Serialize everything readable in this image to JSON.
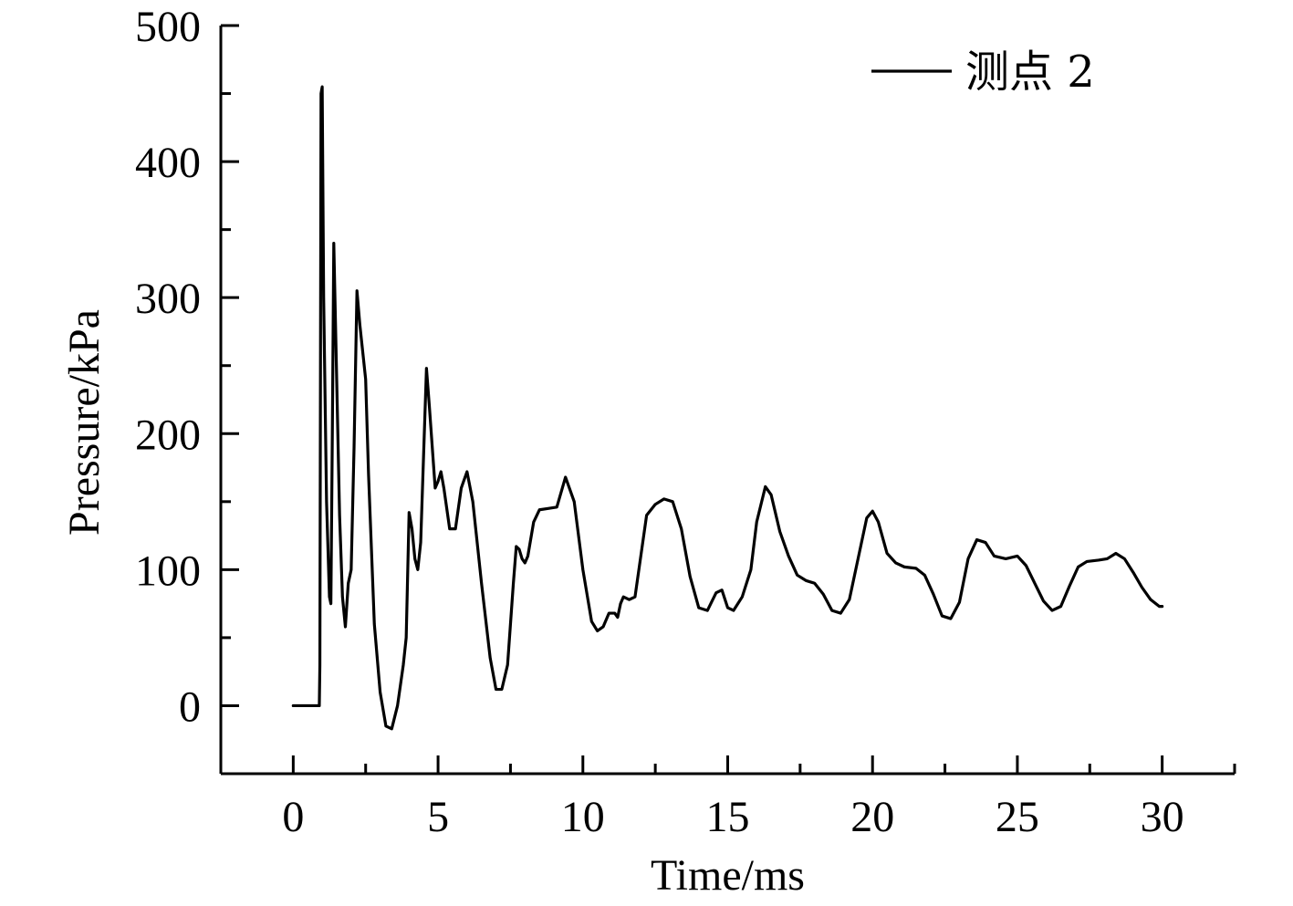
{
  "chart_data": {
    "type": "line",
    "title": "",
    "xlabel": "Time/ms",
    "ylabel": "Pressure/kPa",
    "xlim": [
      -2.5,
      32.5
    ],
    "ylim": [
      -50,
      500
    ],
    "xticks": [
      0,
      5,
      10,
      15,
      20,
      25,
      30
    ],
    "yticks": [
      0,
      100,
      200,
      300,
      400,
      500
    ],
    "x_minor_step": 2.5,
    "y_minor_step": 50,
    "grid": false,
    "legend_position": "top-right",
    "line_color": "#000000",
    "series": [
      {
        "name": "测点 2",
        "points": [
          [
            0.0,
            0
          ],
          [
            0.9,
            0
          ],
          [
            0.92,
            30
          ],
          [
            0.96,
            450
          ],
          [
            1.0,
            455
          ],
          [
            1.05,
            300
          ],
          [
            1.15,
            150
          ],
          [
            1.25,
            80
          ],
          [
            1.3,
            75
          ],
          [
            1.35,
            200
          ],
          [
            1.4,
            340
          ],
          [
            1.5,
            240
          ],
          [
            1.6,
            140
          ],
          [
            1.7,
            80
          ],
          [
            1.8,
            58
          ],
          [
            1.9,
            90
          ],
          [
            2.0,
            100
          ],
          [
            2.1,
            190
          ],
          [
            2.2,
            305
          ],
          [
            2.3,
            280
          ],
          [
            2.5,
            240
          ],
          [
            2.6,
            170
          ],
          [
            2.8,
            60
          ],
          [
            3.0,
            10
          ],
          [
            3.2,
            -15
          ],
          [
            3.4,
            -17
          ],
          [
            3.6,
            0
          ],
          [
            3.8,
            30
          ],
          [
            3.9,
            50
          ],
          [
            4.0,
            142
          ],
          [
            4.1,
            130
          ],
          [
            4.2,
            108
          ],
          [
            4.3,
            100
          ],
          [
            4.4,
            120
          ],
          [
            4.6,
            248
          ],
          [
            4.7,
            220
          ],
          [
            4.9,
            160
          ],
          [
            5.0,
            165
          ],
          [
            5.1,
            172
          ],
          [
            5.2,
            160
          ],
          [
            5.4,
            130
          ],
          [
            5.6,
            130
          ],
          [
            5.8,
            160
          ],
          [
            6.0,
            172
          ],
          [
            6.2,
            150
          ],
          [
            6.5,
            90
          ],
          [
            6.8,
            35
          ],
          [
            7.0,
            12
          ],
          [
            7.2,
            12
          ],
          [
            7.4,
            30
          ],
          [
            7.6,
            90
          ],
          [
            7.7,
            117
          ],
          [
            7.8,
            115
          ],
          [
            7.9,
            108
          ],
          [
            8.0,
            105
          ],
          [
            8.1,
            110
          ],
          [
            8.3,
            135
          ],
          [
            8.5,
            144
          ],
          [
            8.8,
            145
          ],
          [
            9.1,
            146
          ],
          [
            9.4,
            168
          ],
          [
            9.7,
            150
          ],
          [
            10.0,
            100
          ],
          [
            10.3,
            62
          ],
          [
            10.5,
            55
          ],
          [
            10.7,
            58
          ],
          [
            10.9,
            68
          ],
          [
            11.1,
            68
          ],
          [
            11.2,
            65
          ],
          [
            11.3,
            75
          ],
          [
            11.4,
            80
          ],
          [
            11.6,
            78
          ],
          [
            11.8,
            80
          ],
          [
            12.0,
            110
          ],
          [
            12.2,
            140
          ],
          [
            12.5,
            148
          ],
          [
            12.8,
            152
          ],
          [
            13.1,
            150
          ],
          [
            13.4,
            130
          ],
          [
            13.7,
            95
          ],
          [
            14.0,
            72
          ],
          [
            14.3,
            70
          ],
          [
            14.6,
            83
          ],
          [
            14.8,
            85
          ],
          [
            15.0,
            72
          ],
          [
            15.2,
            70
          ],
          [
            15.5,
            80
          ],
          [
            15.8,
            100
          ],
          [
            16.0,
            135
          ],
          [
            16.3,
            161
          ],
          [
            16.5,
            155
          ],
          [
            16.8,
            128
          ],
          [
            17.1,
            110
          ],
          [
            17.4,
            96
          ],
          [
            17.7,
            92
          ],
          [
            18.0,
            90
          ],
          [
            18.3,
            82
          ],
          [
            18.6,
            70
          ],
          [
            18.9,
            68
          ],
          [
            19.2,
            78
          ],
          [
            19.5,
            108
          ],
          [
            19.8,
            138
          ],
          [
            20.0,
            143
          ],
          [
            20.2,
            135
          ],
          [
            20.5,
            112
          ],
          [
            20.8,
            105
          ],
          [
            21.1,
            102
          ],
          [
            21.5,
            101
          ],
          [
            21.8,
            96
          ],
          [
            22.1,
            82
          ],
          [
            22.4,
            66
          ],
          [
            22.7,
            64
          ],
          [
            23.0,
            76
          ],
          [
            23.3,
            108
          ],
          [
            23.6,
            122
          ],
          [
            23.9,
            120
          ],
          [
            24.2,
            110
          ],
          [
            24.6,
            108
          ],
          [
            25.0,
            110
          ],
          [
            25.3,
            103
          ],
          [
            25.6,
            90
          ],
          [
            25.9,
            77
          ],
          [
            26.2,
            70
          ],
          [
            26.5,
            73
          ],
          [
            26.8,
            88
          ],
          [
            27.1,
            102
          ],
          [
            27.4,
            106
          ],
          [
            27.8,
            107
          ],
          [
            28.1,
            108
          ],
          [
            28.4,
            112
          ],
          [
            28.7,
            108
          ],
          [
            29.0,
            98
          ],
          [
            29.3,
            87
          ],
          [
            29.6,
            78
          ],
          [
            29.9,
            73
          ],
          [
            30.0,
            73
          ]
        ]
      }
    ]
  }
}
